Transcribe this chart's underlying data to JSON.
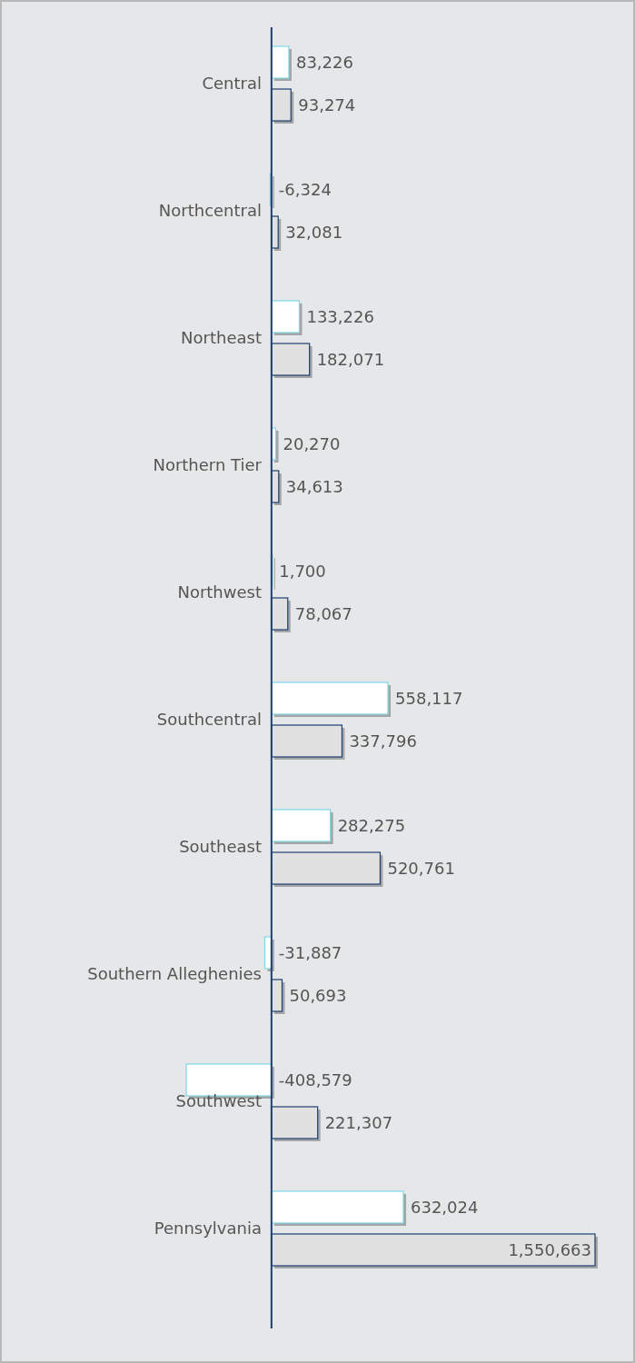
{
  "chart_data": {
    "type": "bar",
    "orientation": "horizontal",
    "categories": [
      "Central",
      "Northcentral",
      "Northeast",
      "Northern Tier",
      "Northwest",
      "Southcentral",
      "Southeast",
      "Southern Alleghenies",
      "Southwest",
      "Pennsylvania"
    ],
    "series": [
      {
        "color": "#ffffff",
        "values": [
          83226,
          -6324,
          133226,
          20270,
          1700,
          558117,
          282275,
          -31887,
          -408579,
          632024
        ],
        "value_labels": [
          "83,226",
          "-6,324",
          "133,226",
          "20,270",
          "1,700",
          "558,117",
          "282,275",
          "-31,887",
          "-408,579",
          "632,024"
        ]
      },
      {
        "color": "#e1e1e1",
        "values": [
          93274,
          32081,
          182071,
          34613,
          78067,
          337796,
          520761,
          50693,
          221307,
          1550663
        ],
        "value_labels": [
          "93,274",
          "32,081",
          "182,071",
          "34,613",
          "78,067",
          "337,796",
          "520,761",
          "50,693",
          "221,307",
          "1,550,663"
        ]
      }
    ]
  }
}
